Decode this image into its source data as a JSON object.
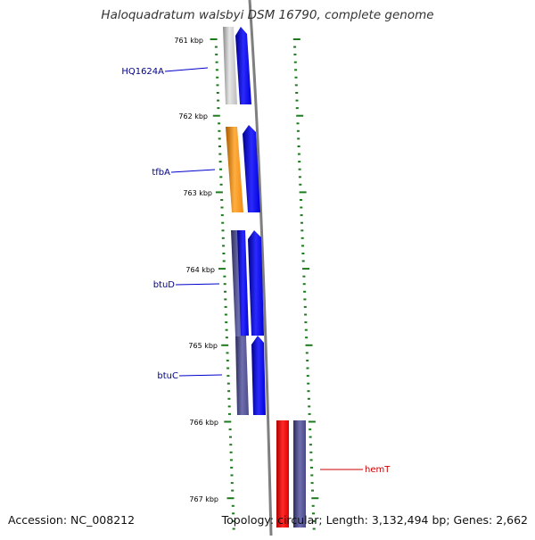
{
  "title": "Haloquadratum walsbyi DSM 16790, complete genome",
  "accession": "Accession: NC_008212",
  "summary": "Topology: circular; Length: 3,132,494 bp; Genes: 2,662",
  "colors": {
    "backbone": "#7f7f7f",
    "tick": "#1e7a1e",
    "forward_cds": "#0000ff",
    "trna": "#ff0000",
    "gene_label": "#00008b",
    "rna_label": "#cc0000"
  },
  "kbp_labels": [
    "761 kbp",
    "762 kbp",
    "763 kbp",
    "764 kbp",
    "765 kbp",
    "766 kbp",
    "767 kbp"
  ],
  "features": [
    {
      "label": "HQ1624A",
      "type": "hypothetical",
      "color": "#bfbfbf"
    },
    {
      "label": "tfbA",
      "type": "gene",
      "color": "#ff8c00"
    },
    {
      "label": "btuD",
      "type": "gene",
      "color": "#4b4b8c"
    },
    {
      "label": "btuC",
      "type": "gene",
      "color": "#4b4b8c"
    },
    {
      "label": "hemT",
      "type": "tRNA",
      "color": "#ff0000"
    }
  ]
}
